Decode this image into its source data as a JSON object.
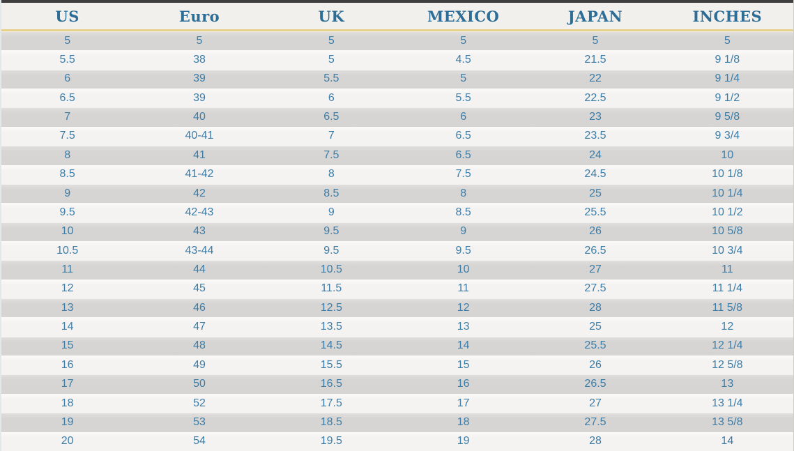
{
  "chart_data": {
    "type": "table",
    "columns": [
      "US",
      "Euro",
      "UK",
      "MEXICO",
      "JAPAN",
      "INCHES"
    ],
    "rows": [
      [
        "5",
        "5",
        "5",
        "5",
        "5",
        "5"
      ],
      [
        "5.5",
        "38",
        "5",
        "4.5",
        "21.5",
        "9 1/8"
      ],
      [
        "6",
        "39",
        "5.5",
        "5",
        "22",
        "9 1/4"
      ],
      [
        "6.5",
        "39",
        "6",
        "5.5",
        "22.5",
        "9 1/2"
      ],
      [
        "7",
        "40",
        "6.5",
        "6",
        "23",
        "9 5/8"
      ],
      [
        "7.5",
        "40-41",
        "7",
        "6.5",
        "23.5",
        "9 3/4"
      ],
      [
        "8",
        "41",
        "7.5",
        "6.5",
        "24",
        "10"
      ],
      [
        "8.5",
        "41-42",
        "8",
        "7.5",
        "24.5",
        "10 1/8"
      ],
      [
        "9",
        "42",
        "8.5",
        "8",
        "25",
        "10 1/4"
      ],
      [
        "9.5",
        "42-43",
        "9",
        "8.5",
        "25.5",
        "10 1/2"
      ],
      [
        "10",
        "43",
        "9.5",
        "9",
        "26",
        "10 5/8"
      ],
      [
        "10.5",
        "43-44",
        "9.5",
        "9.5",
        "26.5",
        "10 3/4"
      ],
      [
        "11",
        "44",
        "10.5",
        "10",
        "27",
        "11"
      ],
      [
        "12",
        "45",
        "11.5",
        "11",
        "27.5",
        "11 1/4"
      ],
      [
        "13",
        "46",
        "12.5",
        "12",
        "28",
        "11 5/8"
      ],
      [
        "14",
        "47",
        "13.5",
        "13",
        "25",
        "12"
      ],
      [
        "15",
        "48",
        "14.5",
        "14",
        "25.5",
        "12 1/4"
      ],
      [
        "16",
        "49",
        "15.5",
        "15",
        "26",
        "12 5/8"
      ],
      [
        "17",
        "50",
        "16.5",
        "16",
        "26.5",
        "13"
      ],
      [
        "18",
        "52",
        "17.5",
        "17",
        "27",
        "13 1/4"
      ],
      [
        "19",
        "53",
        "18.5",
        "18",
        "27.5",
        "13 5/8"
      ],
      [
        "20",
        "54",
        "19.5",
        "19",
        "28",
        "14"
      ]
    ],
    "layout_hints": {
      "striped": true,
      "stripe_start": "gray",
      "header_separator": "gold-line"
    }
  },
  "colors": {
    "top_border": "#3e3e3e",
    "header_bg": "#f1f0ec",
    "header_text": "#2d6d96",
    "accent_line": "#e7d189",
    "cell_text": "#3b7da9",
    "stripe_gray": "#d6d5d3",
    "stripe_light": "#f4f3f1"
  }
}
